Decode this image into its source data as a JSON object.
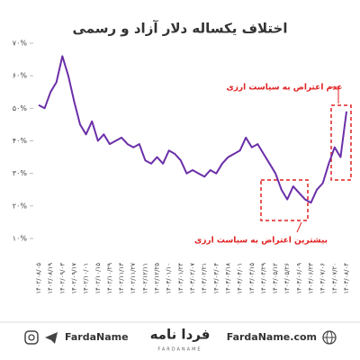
{
  "chart_data": {
    "type": "line",
    "title": "اختلاف یکساله دلار آزاد و رسمی",
    "categories": [
      "۱۴۰۲/۰۸/۰۵",
      null,
      "۱۴۰۲/۰۸/۱۹",
      null,
      "۱۴۰۲/۰۹/۰۳",
      null,
      "۱۴۰۲/۰۹/۱۷",
      null,
      "۱۴۰۲/۱۰/۰۱",
      null,
      "۱۴۰۲/۱۰/۱۵",
      null,
      "۱۴۰۲/۱۰/۲۹",
      null,
      "۱۴۰۲/۱۱/۱۳",
      null,
      "۱۴۰۲/۱۱/۲۷",
      null,
      "۱۴۰۲/۱۲/۱۱",
      null,
      "۱۴۰۲/۱۲/۲۵",
      null,
      "۱۴۰۳/۰۱/۱۰",
      null,
      "۱۴۰۳/۰۱/۲۴",
      null,
      "۱۴۰۳/۰۲/۰۷",
      null,
      "۱۴۰۳/۰۲/۲۱",
      null,
      "۱۴۰۳/۰۳/۰۴",
      null,
      "۱۴۰۳/۰۳/۱۸",
      null,
      "۱۴۰۳/۰۴/۰۱",
      null,
      "۱۴۰۳/۰۴/۱۵",
      null,
      "۱۴۰۳/۰۴/۲۹",
      null,
      "۱۴۰۳/۰۵/۱۲",
      null,
      "۱۴۰۳/۰۵/۲۶",
      null,
      "۱۴۰۳/۰۶/۰۹",
      null,
      "۱۴۰۳/۰۶/۲۳",
      null,
      "۱۴۰۳/۰۷/۰۶",
      null,
      "۱۴۰۳/۰۷/۲۰",
      null,
      "۱۴۰۳/۰۸/۰۴"
    ],
    "values": [
      51,
      50,
      55,
      58,
      66,
      60,
      52,
      45,
      42,
      46,
      40,
      42,
      39,
      40,
      41,
      39,
      38,
      39,
      34,
      33,
      35,
      33,
      37,
      36,
      34,
      30,
      31,
      30,
      29,
      31,
      30,
      33,
      35,
      36,
      37,
      41,
      38,
      39,
      36,
      33,
      30,
      25,
      22,
      26,
      24,
      22,
      21,
      25,
      27,
      33,
      38,
      35,
      49
    ],
    "color": "#6a2fa8",
    "ylim": [
      6,
      72
    ],
    "yticks": [
      {
        "value": 10,
        "label": "۱۰%"
      },
      {
        "value": 20,
        "label": "۲۰%"
      },
      {
        "value": 30,
        "label": "۳۰%"
      },
      {
        "value": 40,
        "label": "۴۰%"
      },
      {
        "value": 50,
        "label": "۵۰%"
      },
      {
        "value": 60,
        "label": "۶۰%"
      },
      {
        "value": 70,
        "label": "۷۰%"
      }
    ],
    "annotations": [
      "عدم اعتراض به سیاست ارزی",
      "بیشترین اعتراض به سیاست ارزی"
    ]
  },
  "footer": {
    "handle": "FardaName",
    "logo": "فردا نامه",
    "logo_sub": "FARDANAME",
    "website": "FardaName.com"
  }
}
